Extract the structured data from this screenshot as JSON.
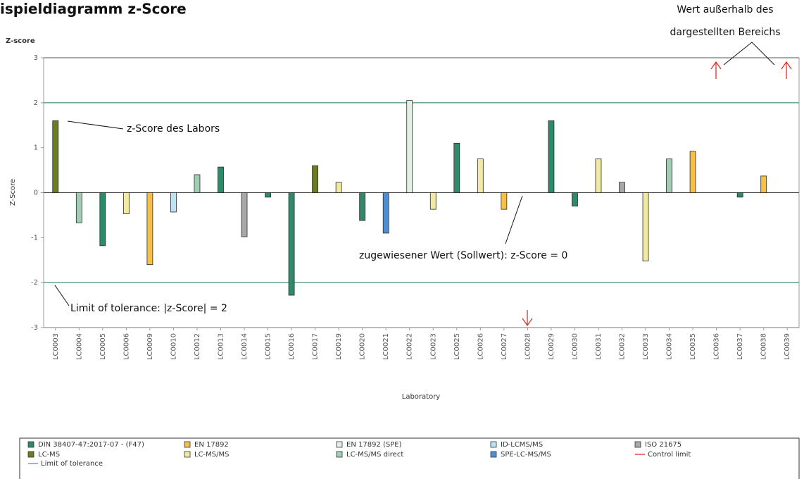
{
  "chart_data": {
    "type": "bar",
    "title": "ispieldiagramm z-Score",
    "y_corner_label": "Z-score",
    "y_label": "Z-Score",
    "x_label": "Laboratory",
    "categories": [
      "LC0003",
      "LC0004",
      "LC0005",
      "LC0006",
      "LC0009",
      "LC0010",
      "LC0012",
      "LC0013",
      "LC0014",
      "LC0015",
      "LC0016",
      "LC0017",
      "LC0019",
      "LC0020",
      "LC0021",
      "LC0022",
      "LC0023",
      "LC0025",
      "LC0026",
      "LC0027",
      "LC0028",
      "LC0029",
      "LC0030",
      "LC0031",
      "LC0032",
      "LC0033",
      "LC0034",
      "LC0035",
      "LC0036",
      "LC0037",
      "LC0038",
      "LC0039"
    ],
    "series": [
      {
        "name": "DIN 38407-47:2017-07 - (F47)",
        "color": "#2e8b6a",
        "values": [
          null,
          null,
          -1.18,
          null,
          null,
          null,
          null,
          0.57,
          null,
          -0.1,
          -2.28,
          null,
          null,
          -0.62,
          null,
          null,
          null,
          1.1,
          null,
          null,
          null,
          1.6,
          -0.3,
          null,
          null,
          null,
          null,
          null,
          null,
          -0.1,
          null,
          null
        ]
      },
      {
        "name": "EN 17892",
        "color": "#f5c045",
        "values": [
          null,
          null,
          null,
          null,
          -1.6,
          null,
          null,
          null,
          null,
          null,
          null,
          null,
          null,
          null,
          null,
          null,
          null,
          null,
          null,
          -0.37,
          null,
          null,
          null,
          null,
          null,
          null,
          null,
          0.92,
          null,
          null,
          0.37,
          null
        ]
      },
      {
        "name": "EN 17892 (SPE)",
        "color": "#e3f0e6",
        "values": [
          null,
          null,
          null,
          null,
          null,
          null,
          null,
          null,
          null,
          null,
          null,
          null,
          null,
          null,
          null,
          2.05,
          null,
          null,
          null,
          null,
          null,
          null,
          null,
          null,
          null,
          null,
          null,
          null,
          null,
          null,
          null,
          null
        ]
      },
      {
        "name": "ID-LCMS/MS",
        "color": "#b9e4f3",
        "values": [
          null,
          null,
          null,
          null,
          null,
          -0.43,
          null,
          null,
          null,
          null,
          null,
          null,
          null,
          null,
          null,
          null,
          null,
          null,
          null,
          null,
          null,
          null,
          null,
          null,
          null,
          null,
          null,
          null,
          null,
          null,
          null,
          null
        ]
      },
      {
        "name": "ISO 21675",
        "color": "#a8a8a8",
        "values": [
          null,
          null,
          null,
          null,
          null,
          null,
          null,
          null,
          -0.98,
          null,
          null,
          null,
          null,
          null,
          null,
          null,
          null,
          null,
          null,
          null,
          null,
          null,
          null,
          null,
          0.23,
          null,
          null,
          null,
          null,
          null,
          null,
          null
        ]
      },
      {
        "name": "LC-MS",
        "color": "#6b7d22",
        "values": [
          1.6,
          null,
          null,
          null,
          null,
          null,
          null,
          null,
          null,
          null,
          null,
          0.6,
          null,
          null,
          null,
          null,
          null,
          null,
          null,
          null,
          null,
          null,
          null,
          null,
          null,
          null,
          null,
          null,
          null,
          null,
          null,
          null
        ]
      },
      {
        "name": "LC-MS/MS",
        "color": "#f2eaa2",
        "values": [
          null,
          null,
          null,
          -0.47,
          null,
          null,
          null,
          null,
          null,
          null,
          null,
          null,
          0.23,
          null,
          null,
          null,
          -0.37,
          null,
          0.75,
          null,
          null,
          null,
          null,
          0.75,
          null,
          -1.52,
          null,
          null,
          null,
          null,
          null,
          null
        ]
      },
      {
        "name": "LC-MS/MS direct",
        "color": "#9fcfb2",
        "values": [
          null,
          -0.67,
          null,
          null,
          null,
          null,
          0.4,
          null,
          null,
          null,
          null,
          null,
          null,
          null,
          null,
          null,
          null,
          null,
          null,
          null,
          null,
          null,
          null,
          null,
          null,
          null,
          0.75,
          null,
          null,
          null,
          null,
          null
        ]
      },
      {
        "name": "SPE-LC-MS/MS",
        "color": "#4a90d9",
        "values": [
          null,
          null,
          null,
          null,
          null,
          null,
          null,
          null,
          null,
          null,
          null,
          null,
          null,
          null,
          -0.9,
          null,
          null,
          null,
          null,
          null,
          null,
          null,
          null,
          null,
          null,
          null,
          null,
          null,
          null,
          null,
          null,
          null
        ]
      }
    ],
    "ylim": [
      -3,
      3
    ],
    "yticks": [
      -3,
      -2,
      -1,
      0,
      1,
      2,
      3
    ],
    "tolerance_limit": {
      "name": "Limit of tolerance",
      "color": "#5a9a8a",
      "values": [
        -2,
        2
      ]
    },
    "control_limit": {
      "name": "Control limit",
      "color": "#e03030"
    },
    "annotations": [
      "z-Score des Labors",
      "zugewiesener Wert (Sollwert): z-Score = 0",
      "Limit of tolerance: |z-Score| = 2",
      "Wert außerhalb des",
      "dargestellten Bereichs"
    ]
  }
}
